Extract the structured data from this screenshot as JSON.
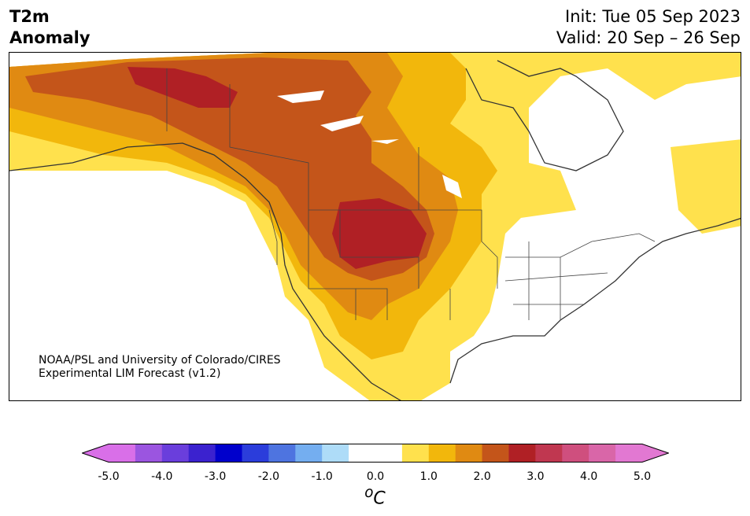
{
  "title": {
    "line1": "T2m",
    "line2": "Anomaly"
  },
  "init": "Init: Tue 05 Sep 2023",
  "valid": "Valid: 20 Sep – 26 Sep",
  "credit": {
    "line1": "NOAA/PSL and University of Colorado/CIRES",
    "line2": "Experimental LIM Forecast (v1.2)"
  },
  "colorbar": {
    "ticks": [
      "-5.0",
      "-4.0",
      "-3.0",
      "-2.0",
      "-1.0",
      "0.0",
      "1.0",
      "2.0",
      "3.0",
      "4.0",
      "5.0"
    ],
    "unit_sup": "o",
    "unit": "C",
    "colors": [
      "#d96fe8",
      "#9b55e0",
      "#6a3edc",
      "#3b22cf",
      "#0000cc",
      "#2b3ddb",
      "#4e74e0",
      "#74aef0",
      "#aedcf8",
      "#ffffff",
      "#ffffff",
      "#ffe14d",
      "#f2b70c",
      "#e08a12",
      "#c4551a",
      "#b02025",
      "#c03750",
      "#cf4f7e",
      "#d966a8",
      "#e278d2"
    ],
    "low_extend": "#d96fe8",
    "high_extend": "#e278d2"
  },
  "map_colors": {
    "land": "#ffffff",
    "lev1": "#ffe14d",
    "lev2": "#f2b70c",
    "lev3": "#e08a12",
    "lev4": "#c4551a",
    "lev5": "#b02025"
  }
}
